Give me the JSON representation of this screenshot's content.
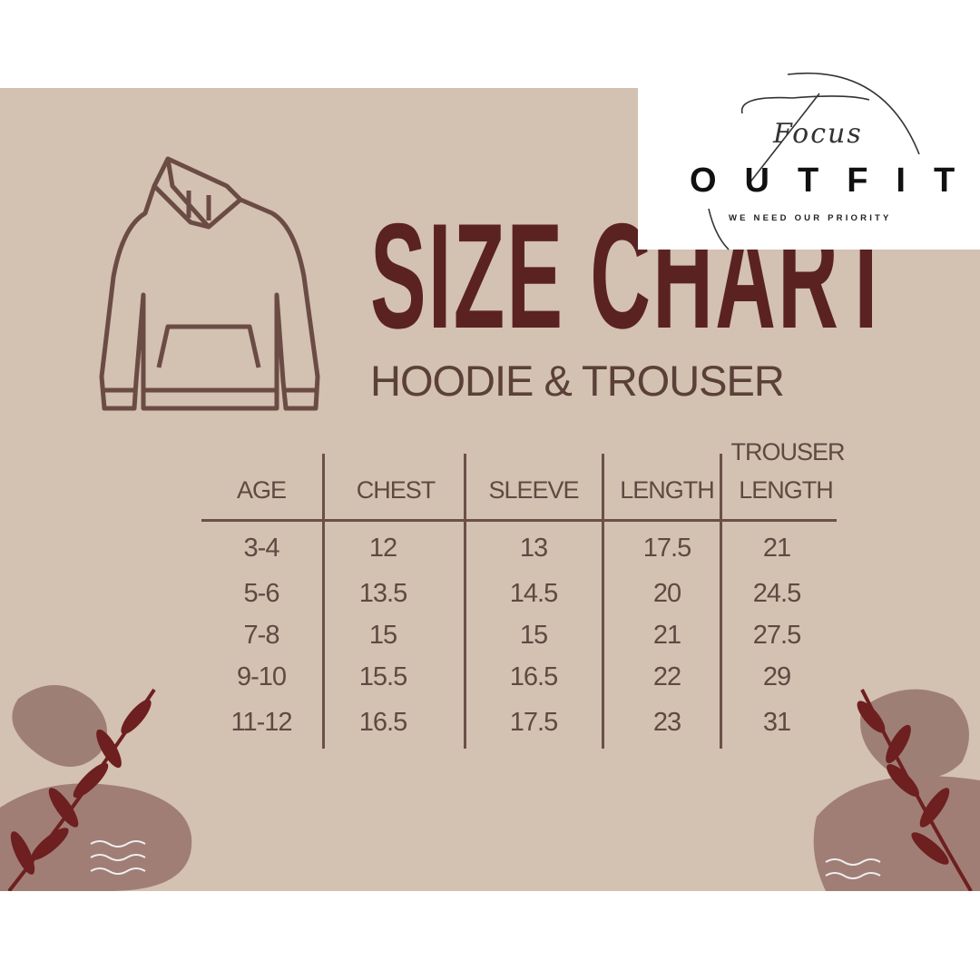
{
  "logo": {
    "script": "Focus",
    "wordmark": "OUTFIT",
    "tagline": "WE NEED OUR PRIORITY"
  },
  "title": "SIZE CHART",
  "subtitle": "HOODIE & TROUSER",
  "colors": {
    "background": "#d3c1b2",
    "title": "#5b2222",
    "text": "#5e4a40",
    "leaf": "#6e1f1f"
  },
  "table": {
    "headers": [
      [
        "AGE"
      ],
      [
        "CHEST"
      ],
      [
        "SLEEVE"
      ],
      [
        "LENGTH"
      ],
      [
        "TROUSER",
        "LENGTH"
      ]
    ],
    "rows": [
      [
        "3-4",
        "12",
        "13",
        "17.5",
        "21"
      ],
      [
        "5-6",
        "13.5",
        "14.5",
        "20",
        "24.5"
      ],
      [
        "7-8",
        "15",
        "15",
        "21",
        "27.5"
      ],
      [
        "9-10",
        "15.5",
        "16.5",
        "22",
        "29"
      ],
      [
        "11-12",
        "16.5",
        "17.5",
        "23",
        "31"
      ]
    ]
  }
}
